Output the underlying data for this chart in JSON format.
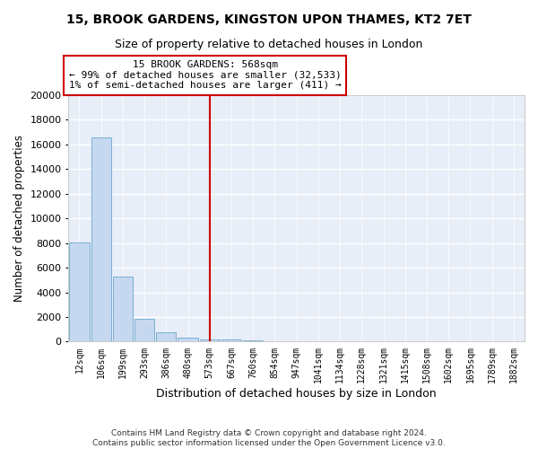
{
  "title": "15, BROOK GARDENS, KINGSTON UPON THAMES, KT2 7ET",
  "subtitle": "Size of property relative to detached houses in London",
  "xlabel": "Distribution of detached houses by size in London",
  "ylabel": "Number of detached properties",
  "bar_color": "#c5d8f0",
  "bar_edge_color": "#7aafd4",
  "background_color": "#e8eef8",
  "grid_color": "#ffffff",
  "categories": [
    "12sqm",
    "106sqm",
    "199sqm",
    "293sqm",
    "386sqm",
    "480sqm",
    "573sqm",
    "667sqm",
    "760sqm",
    "854sqm",
    "947sqm",
    "1041sqm",
    "1134sqm",
    "1228sqm",
    "1321sqm",
    "1415sqm",
    "1508sqm",
    "1602sqm",
    "1695sqm",
    "1789sqm",
    "1882sqm"
  ],
  "values": [
    8050,
    16550,
    5300,
    1850,
    750,
    310,
    200,
    160,
    110,
    0,
    0,
    0,
    0,
    0,
    0,
    0,
    0,
    0,
    0,
    0,
    0
  ],
  "vline_index": 6,
  "vline_color": "#cc0000",
  "annotation_line1": "15 BROOK GARDENS: 568sqm",
  "annotation_line2": "← 99% of detached houses are smaller (32,533)",
  "annotation_line3": "1% of semi-detached houses are larger (411) →",
  "annotation_box_color": "#cc0000",
  "ylim": [
    0,
    20000
  ],
  "yticks": [
    0,
    2000,
    4000,
    6000,
    8000,
    10000,
    12000,
    14000,
    16000,
    18000,
    20000
  ],
  "footnote_line1": "Contains HM Land Registry data © Crown copyright and database right 2024.",
  "footnote_line2": "Contains public sector information licensed under the Open Government Licence v3.0."
}
